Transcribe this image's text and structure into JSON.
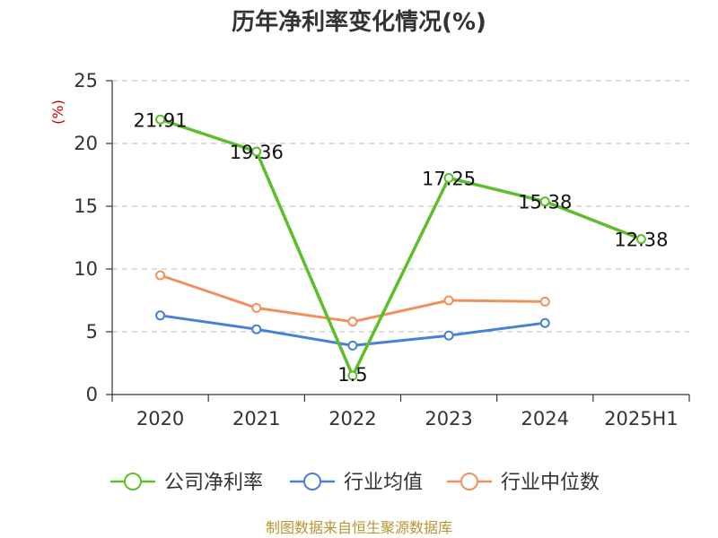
{
  "chart_data": {
    "type": "line",
    "title": "历年净利率变化情况(%)",
    "ylabel": "(%)",
    "xlabel": "",
    "categories": [
      "2020",
      "2021",
      "2022",
      "2023",
      "2024",
      "2025H1"
    ],
    "ylim": [
      0,
      25
    ],
    "yticks": [
      0,
      5,
      10,
      15,
      20,
      25
    ],
    "grid": true,
    "legend_position": "bottom",
    "series": [
      {
        "name": "公司净利率",
        "color": "#5cbf2a",
        "values": [
          21.91,
          19.36,
          1.5,
          17.25,
          15.38,
          12.38
        ],
        "labels": [
          "21.91",
          "19.36",
          "1.5",
          "17.25",
          "15.38",
          "12.38"
        ]
      },
      {
        "name": "行业均值",
        "color": "#4a7fd6",
        "values": [
          6.3,
          5.2,
          3.9,
          4.7,
          5.7,
          null
        ]
      },
      {
        "name": "行业中位数",
        "color": "#f0905c",
        "values": [
          9.5,
          6.9,
          5.8,
          7.5,
          7.4,
          null
        ]
      }
    ]
  },
  "source": "制图数据来自恒生聚源数据库"
}
